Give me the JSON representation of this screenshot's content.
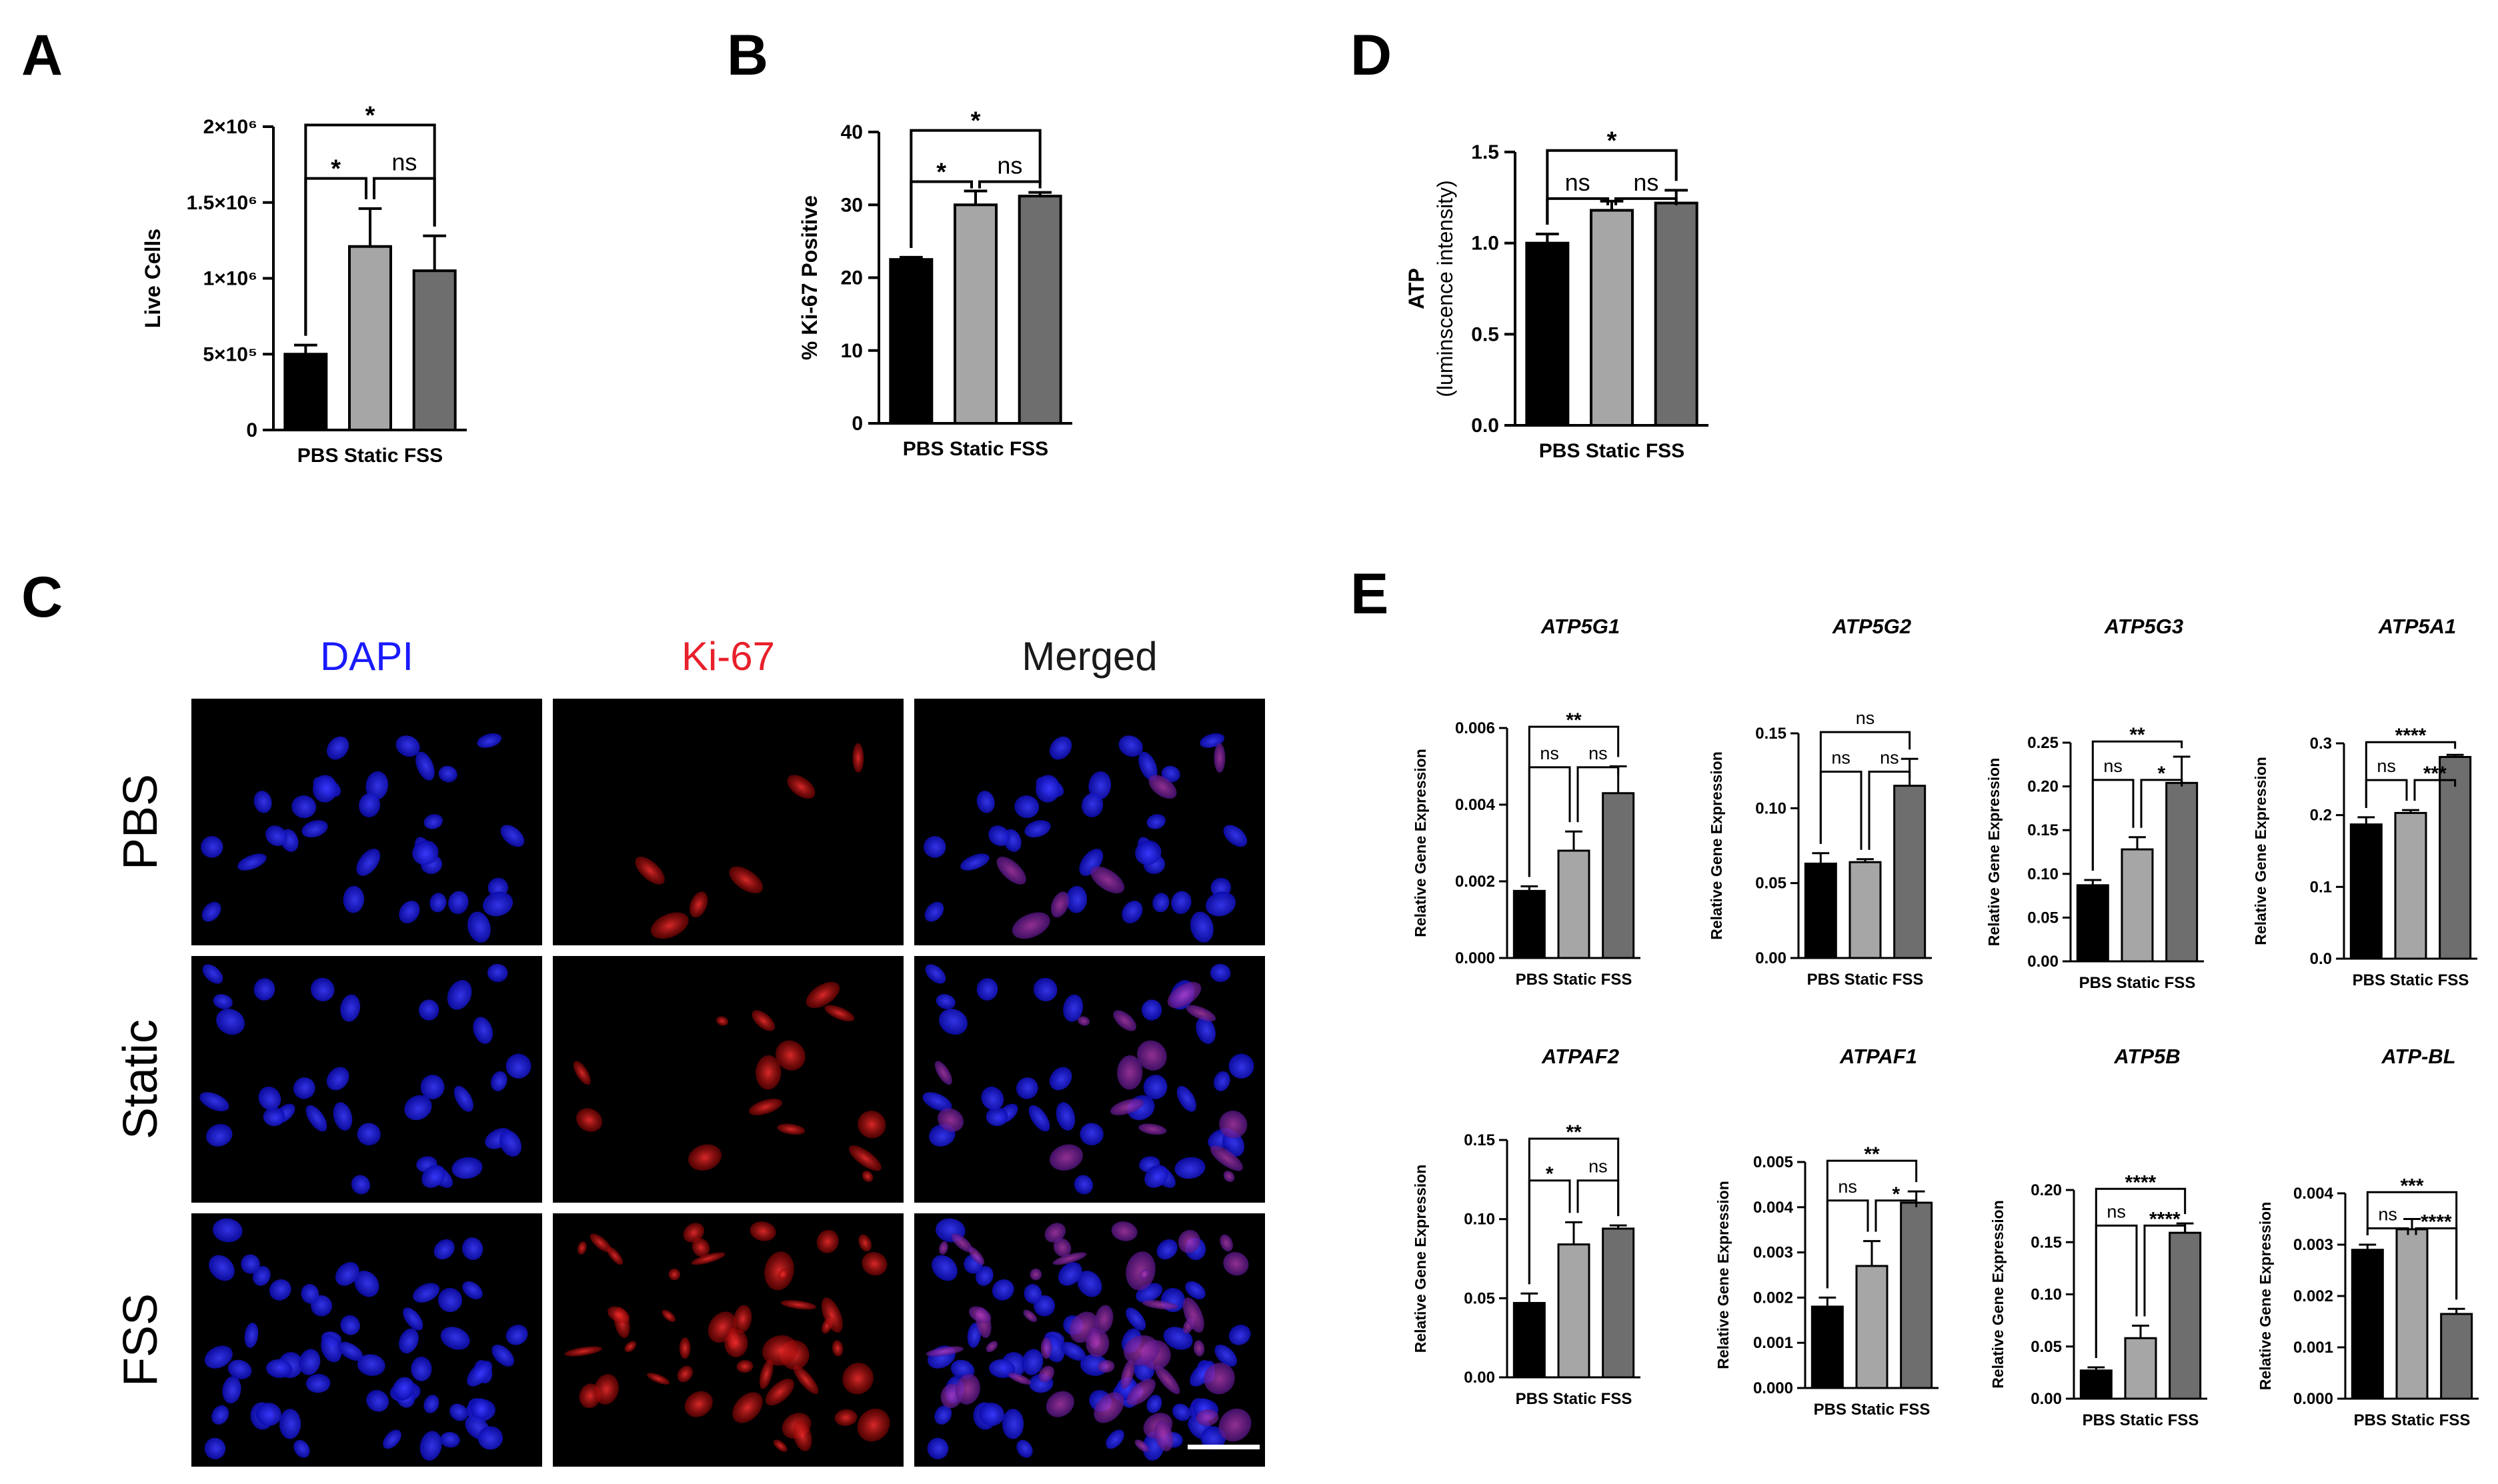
{
  "panel_letters": [
    "A",
    "B",
    "D",
    "C",
    "E"
  ],
  "colors": {
    "PBS": "#000000",
    "Static": "#a6a6a6",
    "FSS": "#6e6e6e",
    "DAPI": "#1a1aff",
    "Ki-67": "#e8202a",
    "Merged": "#1a1a1a"
  },
  "chart_data": [
    {
      "id": "A",
      "type": "bar",
      "categories": [
        "PBS",
        "Static",
        "FSS"
      ],
      "values": [
        500000,
        1210000,
        1050000
      ],
      "errors": [
        60000,
        250000,
        230000
      ],
      "ylabel": "Live Cells",
      "ylim": [
        0,
        2000000
      ],
      "yticks": [
        0,
        500000,
        1000000,
        1500000,
        2000000
      ],
      "ytick_labels": [
        "0",
        "5×10⁵",
        "1×10⁶",
        "1.5×10⁶",
        "2×10⁶"
      ],
      "significance": [
        {
          "from": 0,
          "to": 1,
          "label": "*"
        },
        {
          "from": 1,
          "to": 2,
          "label": "ns"
        },
        {
          "from": 0,
          "to": 2,
          "label": "*"
        }
      ]
    },
    {
      "id": "B",
      "type": "bar",
      "categories": [
        "PBS",
        "Static",
        "FSS"
      ],
      "values": [
        22.5,
        30,
        31.2
      ],
      "errors": [
        0.3,
        1.9,
        0.5
      ],
      "ylabel": "% Ki-67 Positive",
      "ylim": [
        0,
        40
      ],
      "yticks": [
        0,
        10,
        20,
        30,
        40
      ],
      "ytick_labels": [
        "0",
        "10",
        "20",
        "30",
        "40"
      ],
      "significance": [
        {
          "from": 0,
          "to": 1,
          "label": "*"
        },
        {
          "from": 1,
          "to": 2,
          "label": "ns"
        },
        {
          "from": 0,
          "to": 2,
          "label": "*"
        }
      ]
    },
    {
      "id": "D",
      "type": "bar",
      "categories": [
        "PBS",
        "Static",
        "FSS"
      ],
      "values": [
        1.0,
        1.18,
        1.22
      ],
      "errors": [
        0.05,
        0.05,
        0.07
      ],
      "ylabel": "ATP",
      "ylabel2": "(luminscence intensity)",
      "ylim": [
        0,
        1.5
      ],
      "yticks": [
        0,
        0.5,
        1.0,
        1.5
      ],
      "ytick_labels": [
        "0.0",
        "0.5",
        "1.0",
        "1.5"
      ],
      "significance": [
        {
          "from": 0,
          "to": 1,
          "label": "ns"
        },
        {
          "from": 1,
          "to": 2,
          "label": "ns"
        },
        {
          "from": 0,
          "to": 2,
          "label": "*"
        }
      ]
    },
    {
      "id": "E-ATP5G1",
      "type": "bar",
      "title": "ATP5G1",
      "categories": [
        "PBS",
        "Static",
        "FSS"
      ],
      "values": [
        0.00175,
        0.0028,
        0.0043
      ],
      "errors": [
        0.00012,
        0.0005,
        0.0007
      ],
      "ylabel": "Relative Gene Expression",
      "ylim": [
        0,
        0.006
      ],
      "yticks": [
        0,
        0.002,
        0.004,
        0.006
      ],
      "ytick_labels": [
        "0.000",
        "0.002",
        "0.004",
        "0.006"
      ],
      "significance": [
        {
          "from": 0,
          "to": 1,
          "label": "ns"
        },
        {
          "from": 1,
          "to": 2,
          "label": "ns"
        },
        {
          "from": 0,
          "to": 2,
          "label": "**"
        }
      ]
    },
    {
      "id": "E-ATP5G2",
      "type": "bar",
      "title": "ATP5G2",
      "categories": [
        "PBS",
        "Static",
        "FSS"
      ],
      "values": [
        0.063,
        0.064,
        0.115
      ],
      "errors": [
        0.007,
        0.002,
        0.018
      ],
      "ylabel": "Relative Gene Expression",
      "ylim": [
        0,
        0.15
      ],
      "yticks": [
        0,
        0.05,
        0.1,
        0.15
      ],
      "ytick_labels": [
        "0.00",
        "0.05",
        "0.10",
        "0.15"
      ],
      "significance": [
        {
          "from": 0,
          "to": 1,
          "label": "ns"
        },
        {
          "from": 1,
          "to": 2,
          "label": "ns"
        },
        {
          "from": 0,
          "to": 2,
          "label": "ns"
        }
      ]
    },
    {
      "id": "E-ATP5G3",
      "type": "bar",
      "title": "ATP5G3",
      "categories": [
        "PBS",
        "Static",
        "FSS"
      ],
      "values": [
        0.087,
        0.128,
        0.204
      ],
      "errors": [
        0.006,
        0.014,
        0.03
      ],
      "ylabel": "Relative Gene Expression",
      "ylim": [
        0,
        0.25
      ],
      "yticks": [
        0,
        0.05,
        0.1,
        0.15,
        0.2,
        0.25
      ],
      "ytick_labels": [
        "0.00",
        "0.05",
        "0.10",
        "0.15",
        "0.20",
        "0.25"
      ],
      "significance": [
        {
          "from": 0,
          "to": 1,
          "label": "ns"
        },
        {
          "from": 1,
          "to": 2,
          "label": "*"
        },
        {
          "from": 0,
          "to": 2,
          "label": "**"
        }
      ]
    },
    {
      "id": "E-ATP5A1",
      "type": "bar",
      "title": "ATP5A1",
      "categories": [
        "PBS",
        "Static",
        "FSS"
      ],
      "values": [
        0.187,
        0.203,
        0.281
      ],
      "errors": [
        0.01,
        0.004,
        0.003
      ],
      "ylabel": "Relative Gene Expression",
      "ylim": [
        0,
        0.3
      ],
      "yticks": [
        0,
        0.1,
        0.2,
        0.3
      ],
      "ytick_labels": [
        "0.0",
        "0.1",
        "0.2",
        "0.3"
      ],
      "significance": [
        {
          "from": 0,
          "to": 1,
          "label": "ns"
        },
        {
          "from": 1,
          "to": 2,
          "label": "***"
        },
        {
          "from": 0,
          "to": 2,
          "label": "****"
        }
      ]
    },
    {
      "id": "E-ATPAF2",
      "type": "bar",
      "title": "ATPAF2",
      "categories": [
        "PBS",
        "Static",
        "FSS"
      ],
      "values": [
        0.047,
        0.084,
        0.094
      ],
      "errors": [
        0.006,
        0.014,
        0.002
      ],
      "ylabel": "Relative Gene Expression",
      "ylim": [
        0,
        0.15
      ],
      "yticks": [
        0,
        0.05,
        0.1,
        0.15
      ],
      "ytick_labels": [
        "0.00",
        "0.05",
        "0.10",
        "0.15"
      ],
      "significance": [
        {
          "from": 0,
          "to": 1,
          "label": "*"
        },
        {
          "from": 1,
          "to": 2,
          "label": "ns"
        },
        {
          "from": 0,
          "to": 2,
          "label": "**"
        }
      ]
    },
    {
      "id": "E-ATPAF1",
      "type": "bar",
      "title": "ATPAF1",
      "categories": [
        "PBS",
        "Static",
        "FSS"
      ],
      "values": [
        0.0018,
        0.0027,
        0.0041
      ],
      "errors": [
        0.0002,
        0.00055,
        0.00025
      ],
      "ylabel": "Relative Gene Expression",
      "ylim": [
        0,
        0.005
      ],
      "yticks": [
        0,
        0.001,
        0.002,
        0.003,
        0.004,
        0.005
      ],
      "ytick_labels": [
        "0.000",
        "0.001",
        "0.002",
        "0.003",
        "0.004",
        "0.005"
      ],
      "significance": [
        {
          "from": 0,
          "to": 1,
          "label": "ns"
        },
        {
          "from": 1,
          "to": 2,
          "label": "*"
        },
        {
          "from": 0,
          "to": 2,
          "label": "**"
        }
      ]
    },
    {
      "id": "E-ATP5B",
      "type": "bar",
      "title": "ATP5B",
      "categories": [
        "PBS",
        "Static",
        "FSS"
      ],
      "values": [
        0.027,
        0.058,
        0.159
      ],
      "errors": [
        0.003,
        0.012,
        0.009
      ],
      "ylabel": "Relative Gene Expression",
      "ylim": [
        0,
        0.2
      ],
      "yticks": [
        0,
        0.05,
        0.1,
        0.15,
        0.2
      ],
      "ytick_labels": [
        "0.00",
        "0.05",
        "0.10",
        "0.15",
        "0.20"
      ],
      "significance": [
        {
          "from": 0,
          "to": 1,
          "label": "ns"
        },
        {
          "from": 1,
          "to": 2,
          "label": "****"
        },
        {
          "from": 0,
          "to": 2,
          "label": "****"
        }
      ]
    },
    {
      "id": "E-ATP-BL",
      "type": "bar",
      "title": "ATP-BL",
      "categories": [
        "PBS",
        "Static",
        "FSS"
      ],
      "values": [
        0.0029,
        0.0033,
        0.00165
      ],
      "errors": [
        0.0001,
        0.0002,
        0.0001
      ],
      "ylabel": "Relative Gene Expression",
      "ylim": [
        0,
        0.004
      ],
      "yticks": [
        0,
        0.001,
        0.002,
        0.003,
        0.004
      ],
      "ytick_labels": [
        "0.000",
        "0.001",
        "0.002",
        "0.003",
        "0.004"
      ],
      "significance": [
        {
          "from": 0,
          "to": 1,
          "label": "ns"
        },
        {
          "from": 1,
          "to": 2,
          "label": "****"
        },
        {
          "from": 0,
          "to": 2,
          "label": "***"
        }
      ]
    }
  ],
  "microscopy": {
    "columns": [
      "DAPI",
      "Ki-67",
      "Merged"
    ],
    "rows": [
      "PBS",
      "Static",
      "FSS"
    ]
  }
}
